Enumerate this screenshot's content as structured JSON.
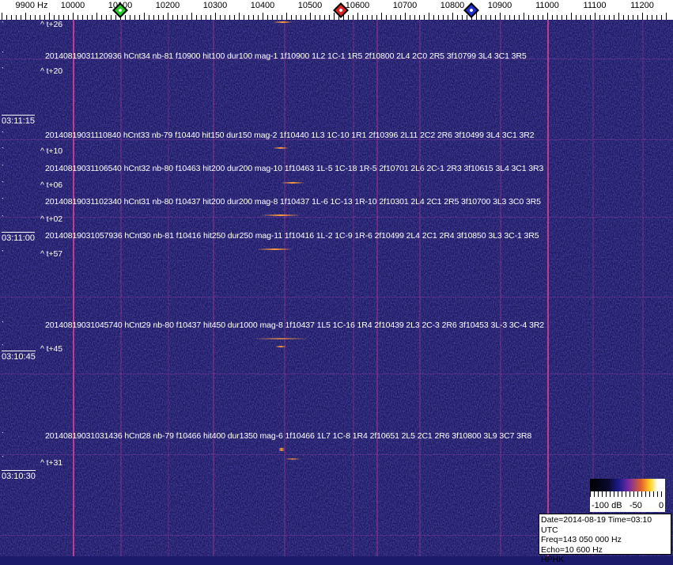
{
  "chart_data": {
    "type": "heatmap",
    "title": "",
    "xlabel": "Hz",
    "x_unit": "Hz",
    "xlim": [
      9900,
      11250
    ],
    "x_ticks": [
      "9900 Hz",
      "10000",
      "10100",
      "10200",
      "10300",
      "10400",
      "10500",
      "10600",
      "10700",
      "10800",
      "10900",
      "11000",
      "11100",
      "11200"
    ],
    "x_tick_values": [
      9900,
      10000,
      10100,
      10200,
      10300,
      10400,
      10500,
      10600,
      10700,
      10800,
      10900,
      11000,
      11100,
      11200
    ],
    "markers": [
      {
        "color": "#22cc22",
        "freq": 10100
      },
      {
        "color": "#dd2222",
        "freq": 10565
      },
      {
        "color": "#1f2fd0",
        "freq": 10840
      }
    ],
    "time_labels": [
      "03:11:15",
      "03:11:00",
      "03:10:45",
      "03:10:30"
    ],
    "offset_labels": [
      "^ t+26",
      "^ t+20",
      "^ t+10",
      "^ t+06",
      "^ t+02",
      "^ t+57",
      "^ t+45",
      "^ t+31"
    ],
    "events": [
      "20140819031120936 hCnt34 nb-81 f10900 hit100 dur100 mag-1 1f10900 1L2 1C-1 1R5 2f10800 2L4 2C0 2R5 3f10799 3L4 3C1 3R5",
      "20140819031110840 hCnt33 nb-79 f10440 hit150 dur150 mag-2 1f10440 1L3 1C-10 1R1 2f10396 2L11 2C2 2R6 3f10499 3L4 3C1 3R2",
      "20140819031106540 hCnt32 nb-80 f10463 hit200 dur200 mag-10 1f10463 1L-5 1C-18 1R-5 2f10701 2L6 2C-1 2R3 3f10615 3L4 3C1 3R3",
      "20140819031102340 hCnt31 nb-80 f10437 hit200 dur200 mag-8 1f10437 1L-6 1C-13 1R-10 2f10301 2L4 2C1 2R5 3f10700 3L3 3C0 3R5",
      "20140819031057936 hCnt30 nb-81 f10416 hit250 dur250 mag-11 1f10416 1L-2 1C-9 1R-6 2f10499 2L4 2C1 2R4 3f10850 3L3 3C-1 3R5",
      "20140819031045740 hCnt29 nb-80 f10437 hit450 dur1000 mag-8 1f10437 1L5 1C-16 1R4 2f10439 2L3 2C-3 2R6 3f10453 3L-3 3C-4 3R2",
      "20140819031031436 hCnt28 nb-79 f10466 hit400 dur1350 mag-6 1f10466 1L7 1C-8 1R4 2f10651 2L5 2C1 2R6 3f10800 3L9 3C7 3R8"
    ],
    "colorbar": {
      "labels": [
        "-100 dB",
        "-50",
        "0"
      ],
      "colors": [
        "#000000",
        "#1a1a8a",
        "#7a2aa0",
        "#e0602a",
        "#ffd020",
        "#ffffff"
      ]
    }
  },
  "info": {
    "date_time": "Date=2014-08-19 Time=03:10 UTC",
    "freq": "Freq=143 050 000 Hz",
    "echo": "Echo=10 600 Hz",
    "station": "HPHK"
  }
}
